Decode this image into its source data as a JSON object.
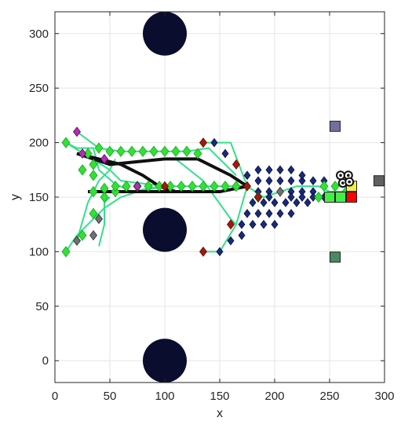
{
  "chart_data": {
    "type": "scatter",
    "title": "",
    "xlabel": "x",
    "ylabel": "y",
    "xlim": [
      0,
      300
    ],
    "ylim": [
      -20,
      320
    ],
    "xticks": [
      0,
      50,
      100,
      150,
      200,
      250,
      300
    ],
    "yticks": [
      0,
      50,
      100,
      150,
      200,
      250,
      300
    ],
    "grid": true,
    "obstacles": [
      {
        "x": 100,
        "y": 300,
        "r": 20
      },
      {
        "x": 100,
        "y": 120,
        "r": 20
      },
      {
        "x": 100,
        "y": 0,
        "r": 20
      }
    ],
    "black_paths": [
      [
        [
          20,
          190
        ],
        [
          40,
          185
        ],
        [
          60,
          180
        ],
        [
          80,
          170
        ],
        [
          95,
          160
        ],
        [
          110,
          155
        ],
        [
          140,
          155
        ]
      ],
      [
        [
          20,
          190
        ],
        [
          50,
          180
        ],
        [
          100,
          185
        ],
        [
          130,
          185
        ],
        [
          160,
          170
        ],
        [
          175,
          160
        ]
      ],
      [
        [
          30,
          155
        ],
        [
          60,
          155
        ],
        [
          90,
          155
        ],
        [
          120,
          155
        ],
        [
          150,
          155
        ],
        [
          175,
          160
        ]
      ]
    ],
    "green_paths": [
      [
        [
          10,
          200
        ],
        [
          20,
          195
        ],
        [
          35,
          195
        ],
        [
          40,
          175
        ],
        [
          55,
          162
        ],
        [
          70,
          155
        ],
        [
          85,
          158
        ],
        [
          100,
          160
        ]
      ],
      [
        [
          10,
          200
        ],
        [
          50,
          175
        ],
        [
          60,
          165
        ],
        [
          100,
          160
        ],
        [
          150,
          160
        ],
        [
          175,
          160
        ]
      ],
      [
        [
          10,
          100
        ],
        [
          20,
          115
        ],
        [
          30,
          125
        ],
        [
          45,
          140
        ],
        [
          60,
          150
        ],
        [
          75,
          155
        ],
        [
          100,
          160
        ]
      ],
      [
        [
          20,
          210
        ],
        [
          40,
          195
        ],
        [
          60,
          192
        ],
        [
          80,
          192
        ],
        [
          100,
          192
        ],
        [
          120,
          192
        ],
        [
          140,
          195
        ],
        [
          165,
          170
        ]
      ],
      [
        [
          20,
          110
        ],
        [
          30,
          145
        ],
        [
          40,
          165
        ],
        [
          50,
          175
        ],
        [
          55,
          185
        ]
      ],
      [
        [
          40,
          105
        ],
        [
          45,
          125
        ],
        [
          45,
          145
        ],
        [
          50,
          150
        ]
      ],
      [
        [
          135,
          200
        ],
        [
          160,
          200
        ],
        [
          175,
          160
        ]
      ],
      [
        [
          135,
          100
        ],
        [
          150,
          100
        ],
        [
          165,
          125
        ],
        [
          175,
          160
        ]
      ],
      [
        [
          110,
          185
        ],
        [
          135,
          165
        ],
        [
          160,
          130
        ],
        [
          165,
          125
        ]
      ],
      [
        [
          175,
          160
        ],
        [
          190,
          150
        ],
        [
          220,
          160
        ],
        [
          240,
          160
        ],
        [
          250,
          155
        ],
        [
          260,
          155
        ],
        [
          270,
          155
        ]
      ]
    ],
    "green_diamonds": [
      [
        10,
        200
      ],
      [
        10,
        100
      ],
      [
        25,
        115
      ],
      [
        35,
        135
      ],
      [
        45,
        150
      ],
      [
        55,
        155
      ],
      [
        65,
        160
      ],
      [
        30,
        190
      ],
      [
        40,
        195
      ],
      [
        50,
        192
      ],
      [
        60,
        192
      ],
      [
        70,
        192
      ],
      [
        80,
        192
      ],
      [
        90,
        192
      ],
      [
        100,
        192
      ],
      [
        110,
        192
      ],
      [
        120,
        192
      ],
      [
        130,
        190
      ],
      [
        35,
        155
      ],
      [
        45,
        158
      ],
      [
        55,
        160
      ],
      [
        65,
        160
      ],
      [
        75,
        160
      ],
      [
        85,
        160
      ],
      [
        95,
        160
      ],
      [
        105,
        160
      ],
      [
        115,
        160
      ],
      [
        125,
        160
      ],
      [
        135,
        160
      ],
      [
        145,
        160
      ],
      [
        155,
        160
      ],
      [
        165,
        160
      ],
      [
        25,
        175
      ],
      [
        35,
        180
      ],
      [
        35,
        170
      ],
      [
        185,
        150
      ],
      [
        245,
        160
      ],
      [
        255,
        160
      ],
      [
        265,
        155
      ],
      [
        250,
        150
      ],
      [
        240,
        150
      ]
    ],
    "blue_diamonds": [
      [
        145,
        200
      ],
      [
        155,
        190
      ],
      [
        165,
        180
      ],
      [
        175,
        170
      ],
      [
        185,
        165
      ],
      [
        195,
        165
      ],
      [
        205,
        165
      ],
      [
        215,
        165
      ],
      [
        225,
        165
      ],
      [
        235,
        165
      ],
      [
        185,
        175
      ],
      [
        195,
        175
      ],
      [
        205,
        175
      ],
      [
        215,
        175
      ],
      [
        225,
        170
      ],
      [
        185,
        155
      ],
      [
        195,
        155
      ],
      [
        205,
        155
      ],
      [
        215,
        155
      ],
      [
        225,
        155
      ],
      [
        235,
        155
      ],
      [
        180,
        145
      ],
      [
        190,
        145
      ],
      [
        200,
        145
      ],
      [
        210,
        145
      ],
      [
        220,
        145
      ],
      [
        230,
        145
      ],
      [
        175,
        135
      ],
      [
        185,
        135
      ],
      [
        195,
        135
      ],
      [
        205,
        135
      ],
      [
        215,
        135
      ],
      [
        170,
        125
      ],
      [
        180,
        125
      ],
      [
        190,
        125
      ],
      [
        200,
        125
      ],
      [
        160,
        110
      ],
      [
        170,
        115
      ],
      [
        150,
        100
      ],
      [
        215,
        150
      ],
      [
        225,
        150
      ],
      [
        235,
        150
      ],
      [
        245,
        150
      ],
      [
        195,
        150
      ],
      [
        245,
        165
      ]
    ],
    "red_diamonds": [
      [
        135,
        200
      ],
      [
        165,
        180
      ],
      [
        175,
        160
      ],
      [
        160,
        125
      ],
      [
        135,
        100
      ],
      [
        100,
        160
      ],
      [
        185,
        150
      ]
    ],
    "magenta_diamonds": [
      [
        20,
        210
      ],
      [
        75,
        160
      ],
      [
        25,
        190
      ],
      [
        45,
        185
      ]
    ],
    "gray_diamonds": [
      [
        40,
        130
      ],
      [
        35,
        115
      ],
      [
        20,
        110
      ],
      [
        205,
        155
      ]
    ],
    "squares": [
      {
        "x": 255,
        "y": 215,
        "color": "#7070a0"
      },
      {
        "x": 295,
        "y": 165,
        "color": "#606060"
      },
      {
        "x": 255,
        "y": 95,
        "color": "#4a8a60"
      },
      {
        "x": 270,
        "y": 150,
        "color": "#ff0000"
      },
      {
        "x": 250,
        "y": 150,
        "color": "#44ee44"
      },
      {
        "x": 260,
        "y": 150,
        "color": "#44ee44"
      },
      {
        "x": 270,
        "y": 160,
        "color": "#eeee44"
      }
    ],
    "rings": [
      {
        "x": 260,
        "y": 170
      },
      {
        "x": 267,
        "y": 170
      },
      {
        "x": 262,
        "y": 163
      },
      {
        "x": 268,
        "y": 164
      }
    ],
    "colors": {
      "obstacle": "#0b0d2e",
      "green_path": "#33e08a",
      "green_marker": "#33e033",
      "blue_marker": "#1a2a7a",
      "red_marker": "#a01a10",
      "magenta_marker": "#b030b0",
      "gray_marker": "#707070",
      "black_path": "#101010",
      "grid": "#e6e6e6",
      "axis": "#262626"
    }
  }
}
